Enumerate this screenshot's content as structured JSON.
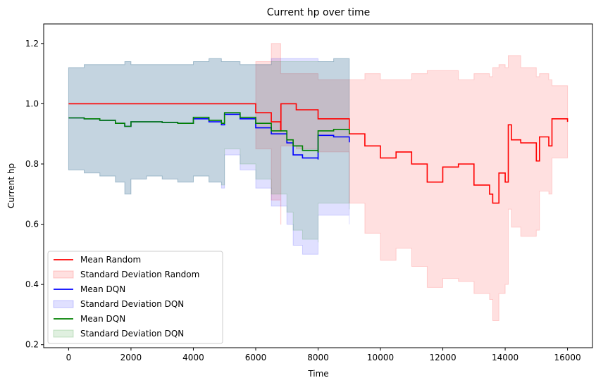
{
  "chart_data": {
    "type": "line",
    "title": "Current hp over time",
    "xlabel": "Time",
    "ylabel": "Current hp",
    "xlim": [
      -800,
      16800
    ],
    "ylim": [
      0.19,
      1.265
    ],
    "xticks": [
      0,
      2000,
      4000,
      6000,
      8000,
      10000,
      12000,
      14000,
      16000
    ],
    "yticks": [
      0.2,
      0.4,
      0.6,
      0.8,
      1.0,
      1.2
    ],
    "xtick_labels": [
      "0",
      "2000",
      "4000",
      "6000",
      "8000",
      "10000",
      "12000",
      "14000",
      "16000"
    ],
    "ytick_labels": [
      "0.2",
      "0.4",
      "0.6",
      "0.8",
      "1.0",
      "1.2"
    ],
    "grid": false,
    "legend_position": "lower-left",
    "series": [
      {
        "name": "Mean Random",
        "band_name": "Standard Deviation Random",
        "color": "#ff0000",
        "band_color": "#ff0000",
        "band_opacity": 0.12,
        "x": [
          0,
          5600,
          6000,
          6500,
          6800,
          6810,
          7300,
          8000,
          9000,
          9500,
          10000,
          10500,
          11000,
          11500,
          12000,
          12500,
          13000,
          13500,
          13600,
          13800,
          14000,
          14100,
          14200,
          14500,
          15000,
          15100,
          15400,
          15500,
          16000
        ],
        "y": [
          1.0,
          1.0,
          0.97,
          0.94,
          0.91,
          1.0,
          0.98,
          0.95,
          0.9,
          0.86,
          0.82,
          0.84,
          0.8,
          0.74,
          0.79,
          0.8,
          0.73,
          0.7,
          0.67,
          0.77,
          0.74,
          0.93,
          0.88,
          0.87,
          0.81,
          0.89,
          0.86,
          0.95,
          0.94
        ],
        "upper": [
          1.0,
          1.0,
          1.14,
          1.2,
          1.1,
          1.1,
          1.1,
          1.08,
          1.08,
          1.1,
          1.08,
          1.08,
          1.1,
          1.11,
          1.11,
          1.08,
          1.1,
          1.09,
          1.12,
          1.13,
          1.12,
          1.16,
          1.16,
          1.12,
          1.09,
          1.1,
          1.08,
          1.06,
          1.06
        ],
        "lower": [
          1.0,
          1.0,
          0.85,
          0.68,
          0.6,
          0.86,
          0.85,
          0.84,
          0.67,
          0.57,
          0.48,
          0.52,
          0.46,
          0.39,
          0.42,
          0.41,
          0.37,
          0.35,
          0.28,
          0.37,
          0.4,
          0.65,
          0.59,
          0.56,
          0.58,
          0.71,
          0.7,
          0.82,
          0.82
        ]
      },
      {
        "name": "Mean DQN",
        "band_name": "Standard Deviation DQN",
        "color": "#0000ff",
        "band_color": "#0000ff",
        "band_opacity": 0.12,
        "x": [
          0,
          500,
          1000,
          1500,
          1800,
          2000,
          2500,
          3000,
          3500,
          4000,
          4500,
          4900,
          5000,
          5500,
          6000,
          6500,
          7000,
          7200,
          7500,
          8000,
          8001,
          8500,
          9000
        ],
        "y": [
          0.953,
          0.95,
          0.945,
          0.935,
          0.925,
          0.94,
          0.94,
          0.938,
          0.935,
          0.95,
          0.94,
          0.93,
          0.965,
          0.95,
          0.92,
          0.9,
          0.87,
          0.83,
          0.82,
          0.815,
          0.895,
          0.89,
          0.872
        ],
        "upper": [
          1.12,
          1.13,
          1.13,
          1.13,
          1.14,
          1.13,
          1.13,
          1.13,
          1.13,
          1.14,
          1.15,
          1.14,
          1.14,
          1.13,
          1.13,
          1.15,
          1.15,
          1.15,
          1.15,
          1.14,
          1.14,
          1.15,
          1.14
        ],
        "lower": [
          0.78,
          0.77,
          0.76,
          0.74,
          0.7,
          0.75,
          0.76,
          0.75,
          0.74,
          0.76,
          0.74,
          0.72,
          0.83,
          0.78,
          0.72,
          0.66,
          0.6,
          0.53,
          0.5,
          0.51,
          0.63,
          0.63,
          0.6
        ]
      },
      {
        "name": "Mean DQN",
        "band_name": "Standard Deviation DQN",
        "color": "#008000",
        "band_color": "#008000",
        "band_opacity": 0.12,
        "x": [
          0,
          500,
          1000,
          1500,
          1800,
          2000,
          2500,
          3000,
          3500,
          4000,
          4500,
          4900,
          5000,
          5500,
          6000,
          6500,
          7000,
          7200,
          7500,
          8000,
          8001,
          8500,
          9000
        ],
        "y": [
          0.953,
          0.95,
          0.945,
          0.935,
          0.925,
          0.94,
          0.94,
          0.938,
          0.935,
          0.955,
          0.945,
          0.935,
          0.97,
          0.955,
          0.935,
          0.91,
          0.88,
          0.86,
          0.845,
          0.838,
          0.91,
          0.915,
          0.9
        ],
        "upper": [
          1.12,
          1.13,
          1.13,
          1.13,
          1.14,
          1.13,
          1.13,
          1.13,
          1.13,
          1.14,
          1.15,
          1.14,
          1.14,
          1.13,
          1.13,
          1.14,
          1.14,
          1.14,
          1.14,
          1.14,
          1.14,
          1.15,
          1.14
        ],
        "lower": [
          0.78,
          0.77,
          0.76,
          0.74,
          0.7,
          0.75,
          0.76,
          0.75,
          0.74,
          0.76,
          0.74,
          0.73,
          0.85,
          0.8,
          0.75,
          0.7,
          0.64,
          0.58,
          0.55,
          0.54,
          0.67,
          0.67,
          0.65
        ]
      }
    ]
  }
}
